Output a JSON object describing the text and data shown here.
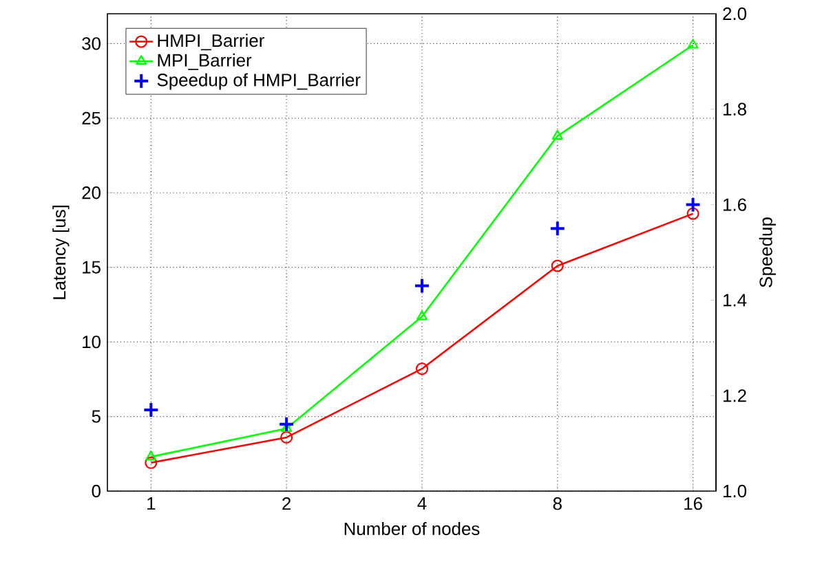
{
  "chart_data": {
    "type": "line",
    "xlabel": "Number of nodes",
    "ylabel": "Latency [us]",
    "y2label": "Speedup",
    "x": [
      1,
      2,
      4,
      8,
      16
    ],
    "log": "x",
    "grid": true,
    "legend": "top left",
    "xlim": [
      0.8,
      18
    ],
    "xticks": [
      1,
      2,
      4,
      8,
      16
    ],
    "ylim": [
      0,
      32
    ],
    "yticks": [
      0,
      5,
      10,
      15,
      20,
      25,
      30
    ],
    "y2lim": [
      1,
      2
    ],
    "y2ticks": [
      {
        "value": 1,
        "label": "1.0"
      },
      {
        "value": 1.2,
        "label": "1.2"
      },
      {
        "value": 1.4,
        "label": "1.4"
      },
      {
        "value": 1.6,
        "label": "1.6"
      },
      {
        "value": 1.8,
        "label": "1.8"
      },
      {
        "value": 2,
        "label": "2.0"
      }
    ],
    "series": [
      {
        "name": "HMPI_Barrier",
        "marker": "circle",
        "color": "#ff0000",
        "values": [
          1.9,
          3.6,
          8.2,
          15.1,
          18.6
        ]
      },
      {
        "name": "MPI_Barrier",
        "marker": "triangle",
        "color": "#00ff00",
        "values": [
          2.3,
          4.2,
          11.7,
          23.8,
          29.9
        ]
      },
      {
        "name": "Speedup of HMPI_Barrier",
        "type": "scatter",
        "marker": "cross",
        "axis": "y2",
        "color": "#0000ff",
        "values": [
          1.17,
          1.14,
          1.43,
          1.55,
          1.6
        ]
      }
    ]
  }
}
